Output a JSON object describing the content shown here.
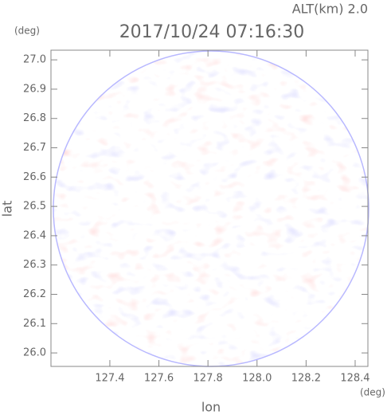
{
  "chart_data": {
    "type": "radar-ppi",
    "title": "2017/10/24 07:16:30",
    "subtitle": "ALT(km) 2.0",
    "x_label": "lon",
    "y_label": "lat",
    "x_unit": "(deg)",
    "y_unit": "(deg)",
    "xlim": [
      127.16,
      128.452
    ],
    "ylim": [
      25.954,
      27.033
    ],
    "xticks": [
      127.4,
      127.6,
      127.8,
      {
        "value": 128.0,
        "label": "128.0"
      },
      128.2,
      128.4
    ],
    "yticks": [
      {
        "value": 26.0,
        "label": "26.0"
      },
      26.1,
      26.2,
      26.3,
      26.4,
      26.5,
      26.6,
      26.7,
      26.8,
      26.9,
      {
        "value": 27.0,
        "label": "27.0"
      }
    ]
  }
}
